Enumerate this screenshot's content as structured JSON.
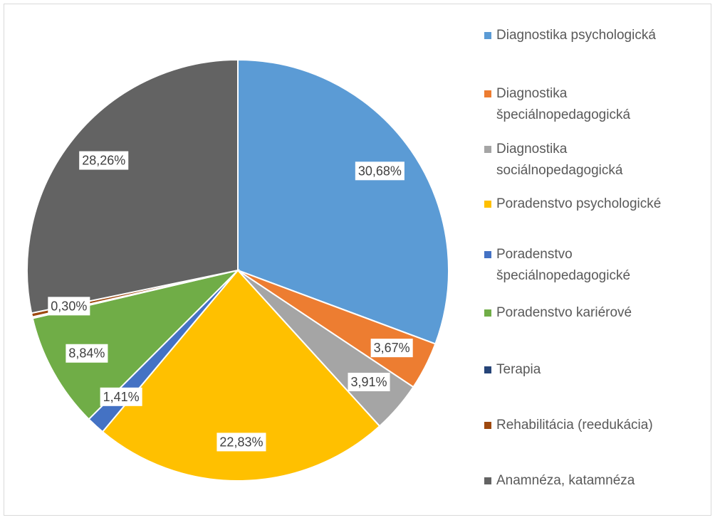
{
  "chart_data": {
    "type": "pie",
    "categories": [
      "Diagnostika psychologická",
      "Diagnostika špeciálnopedagogická",
      "Diagnostika sociálnopedagogická",
      "Poradenstvo psychologické",
      "Poradenstvo špeciálnopedagogické",
      "Poradenstvo kariérové",
      "Terapia",
      "Rehabilitácia (reedukácia)",
      "Anamnéza, katamnéza"
    ],
    "values": [
      30.68,
      3.67,
      3.91,
      22.83,
      1.41,
      8.84,
      0.1,
      0.3,
      28.26
    ],
    "value_labels": [
      "30,68%",
      "3,67%",
      "3,91%",
      "22,83%",
      "1,41%",
      "8,84%",
      null,
      "0,30%",
      "28,26%"
    ],
    "colors": [
      "#5b9bd5",
      "#ed7d31",
      "#a5a5a5",
      "#ffc000",
      "#4472c4",
      "#70ad47",
      "#264478",
      "#9e480e",
      "#636363"
    ],
    "legend": "right"
  }
}
